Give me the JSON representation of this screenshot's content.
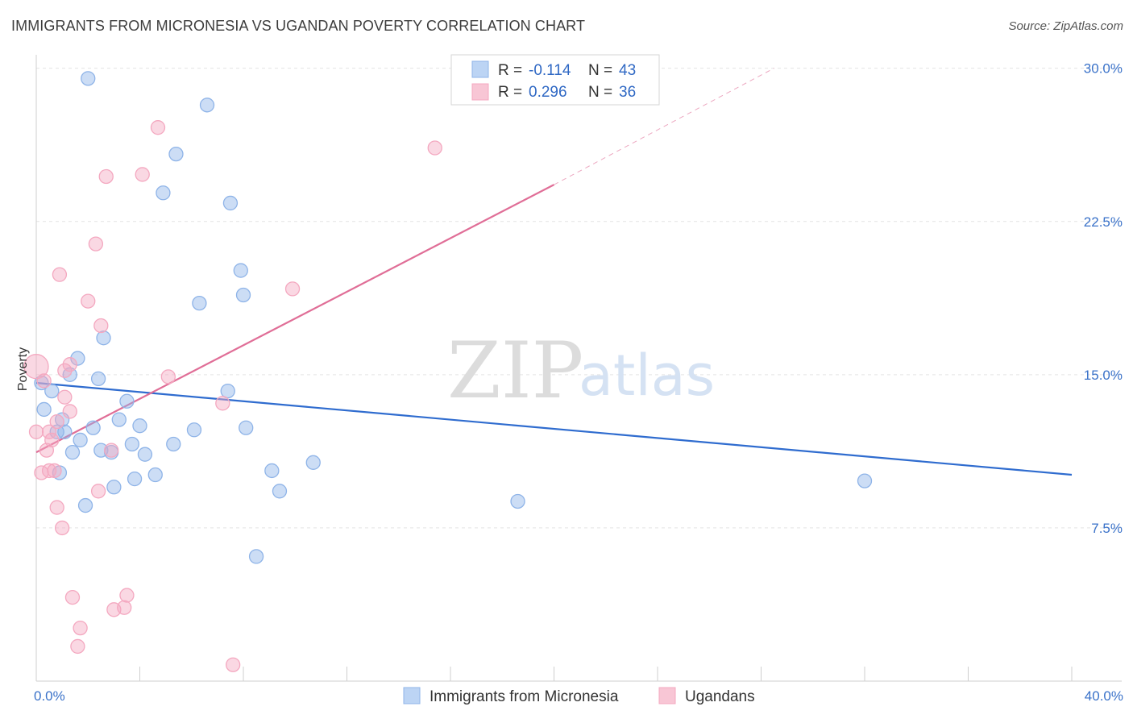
{
  "header": {
    "title": "IMMIGRANTS FROM MICRONESIA VS UGANDAN POVERTY CORRELATION CHART",
    "source": "Source: ZipAtlas.com"
  },
  "watermark": {
    "zip": "ZIP",
    "atlas": "atlas"
  },
  "chart_data": {
    "type": "scatter",
    "ylabel": "Poverty",
    "xlim": [
      0,
      40
    ],
    "ylim": [
      0,
      30.5
    ],
    "x_tick_labels": [
      {
        "value": 0,
        "label": "0.0%"
      },
      {
        "value": 40,
        "label": "40.0%"
      }
    ],
    "y_tick_labels": [
      {
        "value": 7.5,
        "label": "7.5%"
      },
      {
        "value": 15,
        "label": "15.0%"
      },
      {
        "value": 22.5,
        "label": "22.5%"
      },
      {
        "value": 30,
        "label": "30.0%"
      }
    ],
    "grid": true,
    "legend_position": "bottom-center",
    "stats_box_position": "top-center",
    "series": [
      {
        "name": "Immigrants from Micronesia",
        "color": "#8fb4e8",
        "line_color": "#2f6ccf",
        "R": "-0.114",
        "N": "43",
        "trend": {
          "x0": 0,
          "y0": 14.6,
          "x1": 40,
          "y1": 10.1
        },
        "points": [
          {
            "x": 2.0,
            "y": 29.5
          },
          {
            "x": 6.6,
            "y": 28.2
          },
          {
            "x": 5.4,
            "y": 25.8
          },
          {
            "x": 4.9,
            "y": 23.9
          },
          {
            "x": 7.5,
            "y": 23.4
          },
          {
            "x": 7.9,
            "y": 20.1
          },
          {
            "x": 8.0,
            "y": 18.9
          },
          {
            "x": 6.3,
            "y": 18.5
          },
          {
            "x": 2.6,
            "y": 16.8
          },
          {
            "x": 1.6,
            "y": 15.8
          },
          {
            "x": 1.3,
            "y": 15.0
          },
          {
            "x": 2.4,
            "y": 14.8
          },
          {
            "x": 0.2,
            "y": 14.6
          },
          {
            "x": 0.6,
            "y": 14.2
          },
          {
            "x": 7.4,
            "y": 14.2
          },
          {
            "x": 3.5,
            "y": 13.7
          },
          {
            "x": 0.3,
            "y": 13.3
          },
          {
            "x": 1.0,
            "y": 12.8
          },
          {
            "x": 3.2,
            "y": 12.8
          },
          {
            "x": 4.0,
            "y": 12.5
          },
          {
            "x": 2.2,
            "y": 12.4
          },
          {
            "x": 6.1,
            "y": 12.3
          },
          {
            "x": 8.1,
            "y": 12.4
          },
          {
            "x": 0.8,
            "y": 12.2
          },
          {
            "x": 1.1,
            "y": 12.2
          },
          {
            "x": 1.7,
            "y": 11.8
          },
          {
            "x": 5.3,
            "y": 11.6
          },
          {
            "x": 3.7,
            "y": 11.6
          },
          {
            "x": 2.5,
            "y": 11.3
          },
          {
            "x": 2.9,
            "y": 11.2
          },
          {
            "x": 1.4,
            "y": 11.2
          },
          {
            "x": 4.2,
            "y": 11.1
          },
          {
            "x": 10.7,
            "y": 10.7
          },
          {
            "x": 0.9,
            "y": 10.2
          },
          {
            "x": 4.6,
            "y": 10.1
          },
          {
            "x": 9.1,
            "y": 10.3
          },
          {
            "x": 3.8,
            "y": 9.9
          },
          {
            "x": 3.0,
            "y": 9.5
          },
          {
            "x": 9.4,
            "y": 9.3
          },
          {
            "x": 32.0,
            "y": 9.8
          },
          {
            "x": 1.9,
            "y": 8.6
          },
          {
            "x": 18.6,
            "y": 8.8
          },
          {
            "x": 8.5,
            "y": 6.1
          }
        ]
      },
      {
        "name": "Ugandans",
        "color": "#f4a8c0",
        "line_color": "#e06e97",
        "R": "0.296",
        "N": "36",
        "trend": {
          "x0": 0,
          "y0": 11.2,
          "x1": 20,
          "y1": 24.3,
          "dash_x1": 28.5,
          "dash_y1": 30.0
        },
        "points": [
          {
            "x": 4.7,
            "y": 27.1
          },
          {
            "x": 15.4,
            "y": 26.1
          },
          {
            "x": 4.1,
            "y": 24.8
          },
          {
            "x": 2.7,
            "y": 24.7
          },
          {
            "x": 2.3,
            "y": 21.4
          },
          {
            "x": 0.9,
            "y": 19.9
          },
          {
            "x": 9.9,
            "y": 19.2
          },
          {
            "x": 2.0,
            "y": 18.6
          },
          {
            "x": 2.5,
            "y": 17.4
          },
          {
            "x": 0.0,
            "y": 15.4
          },
          {
            "x": 1.3,
            "y": 15.5
          },
          {
            "x": 1.1,
            "y": 15.2
          },
          {
            "x": 5.1,
            "y": 14.9
          },
          {
            "x": 0.3,
            "y": 14.7
          },
          {
            "x": 1.1,
            "y": 13.9
          },
          {
            "x": 7.2,
            "y": 13.6
          },
          {
            "x": 1.3,
            "y": 13.2
          },
          {
            "x": 0.8,
            "y": 12.7
          },
          {
            "x": 0.5,
            "y": 12.2
          },
          {
            "x": 0.0,
            "y": 12.2
          },
          {
            "x": 0.6,
            "y": 11.8
          },
          {
            "x": 0.4,
            "y": 11.3
          },
          {
            "x": 2.9,
            "y": 11.3
          },
          {
            "x": 0.7,
            "y": 10.3
          },
          {
            "x": 0.2,
            "y": 10.2
          },
          {
            "x": 0.5,
            "y": 10.3
          },
          {
            "x": 2.4,
            "y": 9.3
          },
          {
            "x": 0.8,
            "y": 8.5
          },
          {
            "x": 1.0,
            "y": 7.5
          },
          {
            "x": 3.5,
            "y": 4.2
          },
          {
            "x": 1.4,
            "y": 4.1
          },
          {
            "x": 3.4,
            "y": 3.6
          },
          {
            "x": 3.0,
            "y": 3.5
          },
          {
            "x": 1.7,
            "y": 2.6
          },
          {
            "x": 1.6,
            "y": 1.7
          },
          {
            "x": 7.6,
            "y": 0.8
          }
        ]
      }
    ]
  },
  "stats_box": {
    "r_label": "R = ",
    "n_label": "N = "
  }
}
